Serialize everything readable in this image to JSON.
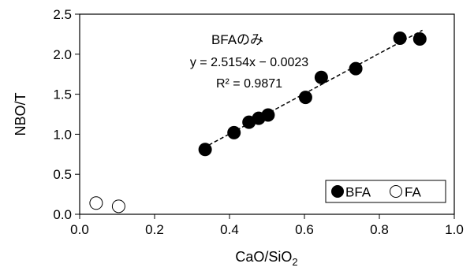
{
  "chart_data": {
    "type": "scatter",
    "xlabel": "CaO/SiO",
    "xlabel_subscript": "2",
    "ylabel": "NBO/T",
    "xlim": [
      0.0,
      1.0
    ],
    "ylim": [
      0.0,
      2.5
    ],
    "xticks": [
      "0.0",
      "0.2",
      "0.4",
      "0.6",
      "0.8",
      "1.0"
    ],
    "yticks": [
      "0.0",
      "0.5",
      "1.0",
      "1.5",
      "2.0",
      "2.5"
    ],
    "grid": false,
    "legend_position": "bottom-right",
    "annotation": {
      "title": "BFAのみ",
      "equation": "y = 2.5154x − 0.0023",
      "r2": "R² = 0.9871"
    },
    "trendline": {
      "slope": 2.5154,
      "intercept": -0.0023,
      "x_range": [
        0.33,
        0.915
      ],
      "style": "dashed"
    },
    "series": [
      {
        "name": "BFA",
        "marker": "filled-circle",
        "x": [
          0.335,
          0.412,
          0.452,
          0.478,
          0.503,
          0.603,
          0.645,
          0.737,
          0.855,
          0.908
        ],
        "y": [
          0.81,
          1.02,
          1.15,
          1.2,
          1.24,
          1.46,
          1.71,
          1.82,
          2.2,
          2.19
        ]
      },
      {
        "name": "FA",
        "marker": "open-circle",
        "x": [
          0.044,
          0.104
        ],
        "y": [
          0.14,
          0.1
        ]
      }
    ],
    "colors": {
      "filled": "#000000",
      "open_fill": "#ffffff",
      "stroke": "#000000"
    }
  }
}
